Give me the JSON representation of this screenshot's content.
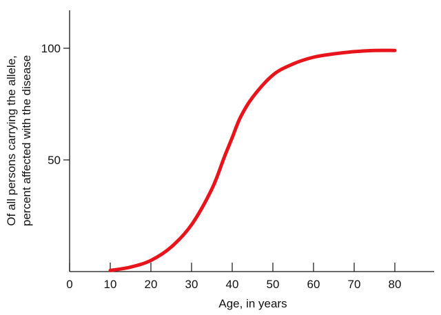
{
  "chart_data": {
    "type": "line",
    "title": "",
    "xlabel": "Age, in years",
    "ylabel_lines": [
      "Of all persons carrying the allele,",
      "percent affected with the disease"
    ],
    "xlim": [
      0,
      90
    ],
    "ylim": [
      0,
      117
    ],
    "x_ticks": [
      0,
      10,
      20,
      30,
      40,
      50,
      60,
      70,
      80
    ],
    "y_ticks": [
      50,
      100
    ],
    "grid": false,
    "series": [
      {
        "color": "#e8141c",
        "x": [
          10,
          15,
          20,
          25,
          30,
          35,
          38,
          40,
          42,
          45,
          50,
          55,
          60,
          65,
          70,
          75,
          80
        ],
        "y": [
          0.5,
          2,
          5,
          11,
          21,
          37,
          51,
          60,
          69,
          78,
          88,
          93,
          96,
          97.5,
          98.5,
          99,
          99
        ]
      }
    ]
  }
}
